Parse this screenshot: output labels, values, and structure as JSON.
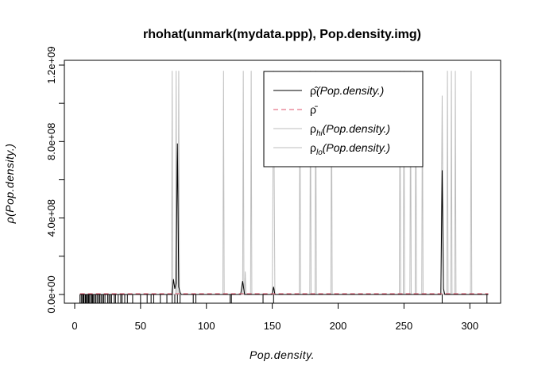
{
  "chart_data": {
    "type": "line",
    "title": "rhohat(unmark(mydata.ppp), Pop.density.img)",
    "xlabel": "Pop.density.",
    "ylabel": "ρ(Pop.density.)",
    "xlim": [
      4,
      314
    ],
    "ylim": [
      0,
      1200000000
    ],
    "x_ticks": [
      0,
      50,
      100,
      150,
      200,
      250,
      300
    ],
    "x_tick_labels": [
      "0",
      "50",
      "100",
      "150",
      "200",
      "250",
      "300"
    ],
    "y_ticks": [
      0,
      400000000,
      800000000,
      1200000000
    ],
    "y_tick_labels": [
      "0.0e+00",
      "4.0e+08",
      "8.0e+08",
      "1.2e+09"
    ],
    "grid": false,
    "legend_position": "top-right",
    "legend": [
      {
        "symbol": "ρ̂",
        "arg": "(Pop.density.)",
        "color": "#000000",
        "dash": "solid"
      },
      {
        "symbol": "ρ̄",
        "arg": "",
        "color": "#DF536B",
        "dash": "dashed"
      },
      {
        "symbol": "ρ",
        "sub": "hi",
        "arg": "(Pop.density.)",
        "color": "#BEBEBE",
        "dash": "solid"
      },
      {
        "symbol": "ρ",
        "sub": "lo",
        "arg": "(Pop.density.)",
        "color": "#BEBEBE",
        "dash": "solid"
      }
    ],
    "series": [
      {
        "name": "ρ̂(Pop.density.)",
        "color": "#000000",
        "dash": "solid",
        "x": [
          4,
          74,
          75,
          76,
          77,
          78,
          79,
          80,
          81,
          126,
          127.5,
          129,
          150,
          151,
          152,
          278,
          279,
          280,
          281,
          314
        ],
        "y": [
          0,
          0,
          80000000,
          30000000,
          60000000,
          790000000,
          40000000,
          10000000,
          0,
          0,
          70000000,
          0,
          0,
          40000000,
          0,
          0,
          650000000,
          30000000,
          0,
          0
        ]
      },
      {
        "name": "ρ̄",
        "color": "#DF536B",
        "dash": "dashed",
        "x": [
          4,
          314
        ],
        "y": [
          4000000,
          4000000
        ]
      },
      {
        "name": "ρhi(Pop.density.)",
        "color": "#BEBEBE",
        "dash": "solid",
        "x": [
          4,
          73.5,
          74,
          74.5,
          76.5,
          77,
          77.5,
          78.5,
          79,
          79.5,
          112.5,
          113,
          113.5,
          127.5,
          128,
          128.5,
          129,
          129.5,
          130,
          133.5,
          134,
          134.5,
          150,
          151,
          152,
          170.5,
          171,
          171.5,
          178.5,
          179,
          179.5,
          182.5,
          183,
          183.5,
          194.5,
          195,
          195.5,
          246.5,
          247,
          247.5,
          249.5,
          250,
          250.5,
          254.5,
          255,
          255.5,
          258.5,
          259,
          259.5,
          263.5,
          264,
          264.5,
          278,
          279,
          280,
          282.5,
          283,
          283.5,
          285.5,
          286,
          286.5,
          288.5,
          289,
          289.5,
          300.5,
          301,
          301.5,
          314
        ],
        "y": [
          0,
          0,
          1170000000,
          0,
          0,
          1170000000,
          0,
          0,
          1170000000,
          0,
          0,
          1170000000,
          0,
          0,
          1170000000,
          0,
          0,
          120000000,
          0,
          0,
          1170000000,
          0,
          0,
          1170000000,
          0,
          0,
          1170000000,
          0,
          0,
          1170000000,
          0,
          0,
          1170000000,
          0,
          0,
          1170000000,
          0,
          0,
          1170000000,
          0,
          0,
          1170000000,
          0,
          0,
          1170000000,
          0,
          0,
          1170000000,
          0,
          0,
          1170000000,
          0,
          0,
          1040000000,
          0,
          0,
          1170000000,
          0,
          0,
          1170000000,
          0,
          0,
          1170000000,
          0,
          0,
          1170000000,
          0,
          0
        ]
      },
      {
        "name": "ρlo(Pop.density.)",
        "color": "#BEBEBE",
        "dash": "solid",
        "x": [
          4,
          314
        ],
        "y": [
          0,
          0
        ]
      }
    ],
    "rug_x": [
      4,
      5,
      6,
      6.5,
      7,
      8,
      8.5,
      9,
      10,
      10.5,
      11,
      12,
      13,
      13.5,
      14,
      15,
      16,
      17,
      18,
      19,
      20,
      21,
      22,
      23,
      25,
      26,
      27,
      28,
      30,
      31,
      33,
      35,
      36,
      38,
      40,
      44,
      50,
      55,
      58,
      60,
      65,
      70,
      74,
      76,
      78,
      80,
      90,
      92,
      118,
      119,
      143,
      151,
      279,
      313
    ]
  }
}
